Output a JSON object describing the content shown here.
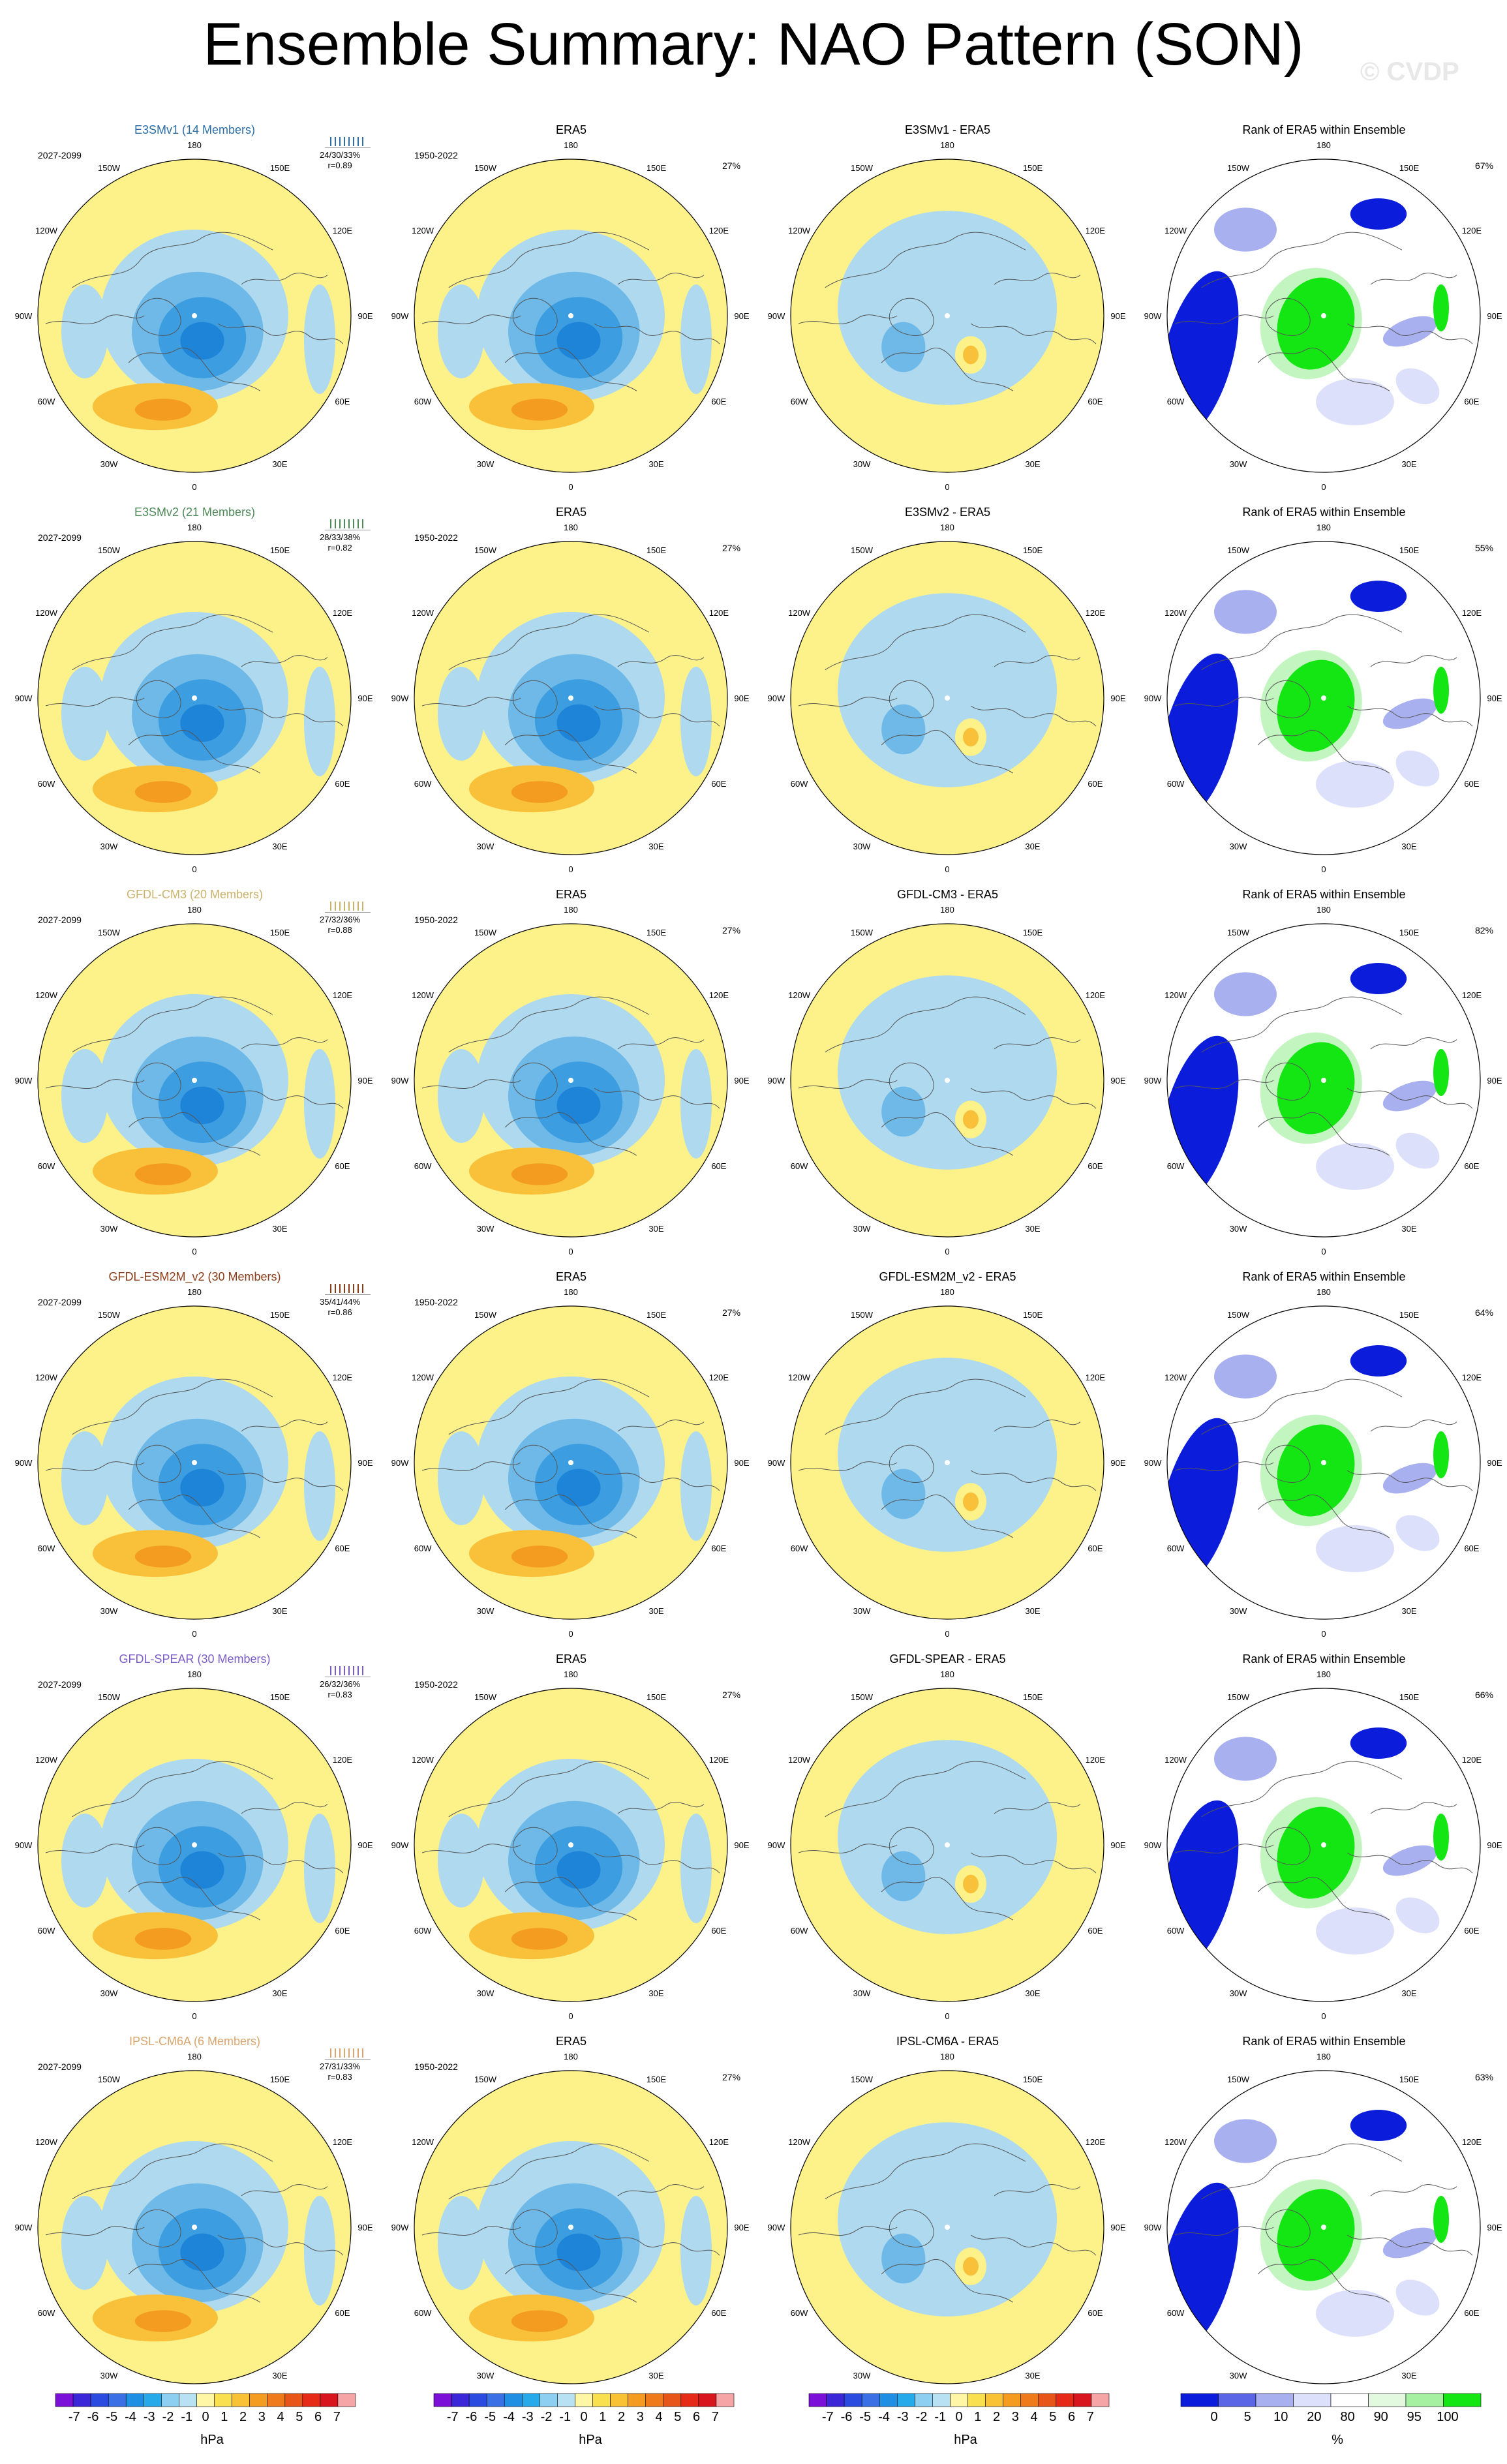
{
  "title": "Ensemble Summary: NAO Pattern (SON)",
  "watermark": "© CVDP",
  "colors": {
    "pos1": "#fdf28a",
    "pos2": "#f9c13a",
    "pos3": "#f39c1f",
    "pos4": "#e8731c",
    "neg1": "#aed9ef",
    "neg2": "#6eb9e7",
    "neg3": "#3c9ee0",
    "neg4": "#1e84d8",
    "rank_low": "#0b1ddb",
    "rank_mid": "#a9b0f0",
    "rank_light": "#dde0fb",
    "rank_high": "#14e614",
    "rank_high_light": "#c2f5bf"
  },
  "lon_labels": [
    "180",
    "150E",
    "120E",
    "90E",
    "60E",
    "30E",
    "0",
    "30W",
    "60W",
    "90W",
    "120W",
    "150W"
  ],
  "rows": [
    {
      "model": {
        "title": "E3SMv1 (14 Members)",
        "color": "#2d6fa6",
        "period": "2027-2099",
        "stats": "24/30/33%",
        "r": "r=0.89"
      },
      "obs": {
        "title": "ERA5",
        "period": "1950-2022",
        "pct": "27%"
      },
      "diff": {
        "title": "E3SMv1 - ERA5"
      },
      "rank": {
        "title": "Rank of ERA5 within Ensemble",
        "pct": "67%"
      }
    },
    {
      "model": {
        "title": "E3SMv2 (21 Members)",
        "color": "#4e8a58",
        "period": "2027-2099",
        "stats": "28/33/38%",
        "r": "r=0.82"
      },
      "obs": {
        "title": "ERA5",
        "period": "1950-2022",
        "pct": "27%"
      },
      "diff": {
        "title": "E3SMv2 - ERA5"
      },
      "rank": {
        "title": "Rank of ERA5 within Ensemble",
        "pct": "55%"
      }
    },
    {
      "model": {
        "title": "GFDL-CM3 (20 Members)",
        "color": "#c9b26b",
        "period": "2027-2099",
        "stats": "27/32/36%",
        "r": "r=0.88"
      },
      "obs": {
        "title": "ERA5",
        "period": "1950-2022",
        "pct": "27%"
      },
      "diff": {
        "title": "GFDL-CM3 - ERA5"
      },
      "rank": {
        "title": "Rank of ERA5 within Ensemble",
        "pct": "82%"
      }
    },
    {
      "model": {
        "title": "GFDL-ESM2M_v2 (30 Members)",
        "color": "#8a3b17",
        "period": "2027-2099",
        "stats": "35/41/44%",
        "r": "r=0.86"
      },
      "obs": {
        "title": "ERA5",
        "period": "1950-2022",
        "pct": "27%"
      },
      "diff": {
        "title": "GFDL-ESM2M_v2 - ERA5"
      },
      "rank": {
        "title": "Rank of ERA5 within Ensemble",
        "pct": "64%"
      }
    },
    {
      "model": {
        "title": "GFDL-SPEAR (30 Members)",
        "color": "#7b5cc9",
        "period": "2027-2099",
        "stats": "26/32/36%",
        "r": "r=0.83"
      },
      "obs": {
        "title": "ERA5",
        "period": "1950-2022",
        "pct": "27%"
      },
      "diff": {
        "title": "GFDL-SPEAR - ERA5"
      },
      "rank": {
        "title": "Rank of ERA5 within Ensemble",
        "pct": "66%"
      }
    },
    {
      "model": {
        "title": "IPSL-CM6A (6 Members)",
        "color": "#d8a56e",
        "period": "2027-2099",
        "stats": "27/31/33%",
        "r": "r=0.83"
      },
      "obs": {
        "title": "ERA5",
        "period": "1950-2022",
        "pct": "27%"
      },
      "diff": {
        "title": "IPSL-CM6A - ERA5"
      },
      "rank": {
        "title": "Rank of ERA5 within Ensemble",
        "pct": "63%"
      }
    }
  ],
  "colorbars": [
    {
      "units": "hPa",
      "labels": [
        "-7",
        "-6",
        "-5",
        "-4",
        "-3",
        "-2",
        "-1",
        "0",
        "1",
        "2",
        "3",
        "4",
        "5",
        "6",
        "7"
      ],
      "colors": [
        "#7b10d8",
        "#3b26d8",
        "#2b4be0",
        "#3a6fe6",
        "#1f8fe4",
        "#27aaea",
        "#8ccff0",
        "#b8e1f4",
        "#fff7a6",
        "#f8e04e",
        "#f8c234",
        "#f39c1f",
        "#ef7a1a",
        "#e85518",
        "#e52a17",
        "#d8161e",
        "#f5a5a5"
      ]
    },
    {
      "units": "hPa",
      "labels": [
        "-7",
        "-6",
        "-5",
        "-4",
        "-3",
        "-2",
        "-1",
        "0",
        "1",
        "2",
        "3",
        "4",
        "5",
        "6",
        "7"
      ],
      "colors": [
        "#7b10d8",
        "#3b26d8",
        "#2b4be0",
        "#3a6fe6",
        "#1f8fe4",
        "#27aaea",
        "#8ccff0",
        "#b8e1f4",
        "#fff7a6",
        "#f8e04e",
        "#f8c234",
        "#f39c1f",
        "#ef7a1a",
        "#e85518",
        "#e52a17",
        "#d8161e",
        "#f5a5a5"
      ]
    },
    {
      "units": "hPa",
      "labels": [
        "-7",
        "-6",
        "-5",
        "-4",
        "-3",
        "-2",
        "-1",
        "0",
        "1",
        "2",
        "3",
        "4",
        "5",
        "6",
        "7"
      ],
      "colors": [
        "#7b10d8",
        "#3b26d8",
        "#2b4be0",
        "#3a6fe6",
        "#1f8fe4",
        "#27aaea",
        "#8ccff0",
        "#b8e1f4",
        "#fff7a6",
        "#f8e04e",
        "#f8c234",
        "#f39c1f",
        "#ef7a1a",
        "#e85518",
        "#e52a17",
        "#d8161e",
        "#f5a5a5"
      ]
    },
    {
      "units": "%",
      "labels": [
        "0",
        "5",
        "10",
        "20",
        "80",
        "90",
        "95",
        "100"
      ],
      "colors": [
        "#0b1ddb",
        "#5a66e6",
        "#a9b0f0",
        "#dde0fb",
        "#ffffff",
        "#e2f9df",
        "#a6f0a1",
        "#14e614"
      ]
    }
  ]
}
